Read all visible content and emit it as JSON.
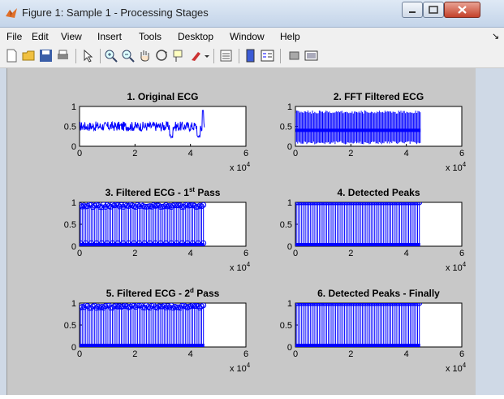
{
  "window": {
    "title": "Figure 1: Sample 1 - Processing Stages",
    "colors": {
      "titlebar": "#c3d4e9",
      "figure_bg": "#c8c8c8",
      "plot_color": "#0000ff"
    }
  },
  "menubar": {
    "items": [
      "File",
      "Edit",
      "View",
      "Insert",
      "Tools",
      "Desktop",
      "Window",
      "Help"
    ],
    "overflow": "↘"
  },
  "toolbar": {
    "buttons": [
      "new-figure-icon",
      "open-file-icon",
      "save-icon",
      "print-icon",
      "edit-plot-arrow-icon",
      "zoom-in-icon",
      "zoom-out-icon",
      "pan-hand-icon",
      "rotate-3d-icon",
      "data-cursor-icon",
      "brush-icon",
      "link-plot-icon",
      "insert-colorbar-icon",
      "insert-legend-icon",
      "hide-plot-tools-icon",
      "show-plot-tools-icon"
    ]
  },
  "chart_data": [
    {
      "type": "line",
      "title": "1. Original ECG",
      "x_multiplier": "x 10^4",
      "xlim": [
        0,
        6
      ],
      "ylim": [
        0,
        1
      ],
      "xticks": [
        "0",
        "2",
        "4",
        "6"
      ],
      "yticks": [
        "0",
        "0.5",
        "1"
      ],
      "x_extent": 4.5,
      "baseline": 0.5,
      "noise_amplitude": 0.12,
      "dips": [
        {
          "x": 3.3,
          "y": 0.2
        },
        {
          "x": 4.3,
          "y": 0.2
        }
      ],
      "spike": {
        "x": 4.45,
        "y": 0.9
      }
    },
    {
      "type": "line",
      "title": "2. FFT Filtered ECG",
      "x_multiplier": "x 10^4",
      "xlim": [
        0,
        6
      ],
      "ylim": [
        0,
        1
      ],
      "xticks": [
        "0",
        "2",
        "4",
        "6"
      ],
      "yticks": [
        "0",
        "0.5",
        "1"
      ],
      "x_extent": 4.5,
      "baseline": 0.4,
      "band_low": 0.05,
      "band_high": 0.9
    },
    {
      "type": "stem",
      "title": "3. Filtered ECG - 1",
      "title_sup": "st",
      "title_tail": " Pass",
      "x_multiplier": "x 10^4",
      "xlim": [
        0,
        6
      ],
      "ylim": [
        0,
        1
      ],
      "xticks": [
        "0",
        "2",
        "4",
        "6"
      ],
      "yticks": [
        "0",
        "0.5",
        "1"
      ],
      "x_extent": 4.5,
      "peak_value": 0.95,
      "spikes_zero": true,
      "secondary_row": 0.07
    },
    {
      "type": "stem",
      "title": "4. Detected Peaks",
      "x_multiplier": "x 10^4",
      "xlim": [
        0,
        6
      ],
      "ylim": [
        0,
        1
      ],
      "xticks": [
        "0",
        "2",
        "4",
        "6"
      ],
      "yticks": [
        "0",
        "0.5",
        "1"
      ],
      "x_extent": 4.5,
      "peak_value": 1.0,
      "spikes_zero": true,
      "secondary_row": null
    },
    {
      "type": "stem",
      "title": "5. Filtered ECG - 2",
      "title_sup": "d",
      "title_tail": " Pass",
      "x_multiplier": "x 10^4",
      "xlim": [
        0,
        6
      ],
      "ylim": [
        0,
        1
      ],
      "xticks": [
        "0",
        "2",
        "4",
        "6"
      ],
      "yticks": [
        "0",
        "0.5",
        "1"
      ],
      "x_extent": 4.5,
      "peak_value": 0.95,
      "spikes_zero": true,
      "secondary_row": null
    },
    {
      "type": "stem",
      "title": "6. Detected Peaks - Finally",
      "x_multiplier": "x 10^4",
      "xlim": [
        0,
        6
      ],
      "ylim": [
        0,
        1
      ],
      "xticks": [
        "0",
        "2",
        "4",
        "6"
      ],
      "yticks": [
        "0",
        "0.5",
        "1"
      ],
      "x_extent": 4.5,
      "peak_value": 1.0,
      "spikes_zero": true,
      "secondary_row": null
    }
  ]
}
